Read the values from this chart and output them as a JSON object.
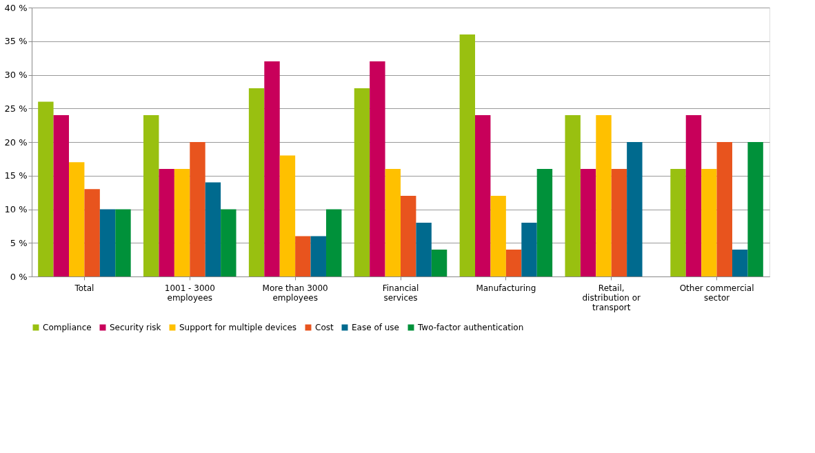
{
  "chart_data": {
    "type": "bar",
    "categories": [
      "Total",
      "1001 - 3000 employees",
      "More than 3000 employees",
      "Financial services",
      "Manufacturing",
      "Retail, distribution or transport",
      "Other commercial sector"
    ],
    "series": [
      {
        "name": "Compliance",
        "color": "#99c010",
        "values": [
          26,
          24,
          28,
          28,
          36,
          24,
          16
        ]
      },
      {
        "name": "Security risk",
        "color": "#c8005a",
        "values": [
          24,
          16,
          32,
          32,
          24,
          16,
          24
        ]
      },
      {
        "name": "Support for multiple devices",
        "color": "#ffc000",
        "values": [
          17,
          16,
          18,
          16,
          12,
          24,
          16
        ]
      },
      {
        "name": "Cost",
        "color": "#e8541e",
        "values": [
          13,
          20,
          6,
          12,
          4,
          16,
          20
        ]
      },
      {
        "name": "Ease of use",
        "color": "#006a8e",
        "values": [
          10,
          14,
          6,
          8,
          8,
          20,
          4
        ]
      },
      {
        "name": "Two-factor authentication",
        "color": "#00913a",
        "values": [
          10,
          10,
          10,
          4,
          16,
          null,
          20
        ]
      }
    ],
    "ylim": [
      0,
      40
    ],
    "yticks": [
      {
        "value": 0,
        "label": "0 %"
      },
      {
        "value": 5,
        "label": "5 %"
      },
      {
        "value": 10,
        "label": "10 %"
      },
      {
        "value": 15,
        "label": "15 %"
      },
      {
        "value": 20,
        "label": "20 %"
      },
      {
        "value": 25,
        "label": "25 %"
      },
      {
        "value": 30,
        "label": "30 %"
      },
      {
        "value": 35,
        "label": "35 %"
      },
      {
        "value": 40,
        "label": "40 %"
      }
    ],
    "grid": "y",
    "legend": "bottom"
  }
}
